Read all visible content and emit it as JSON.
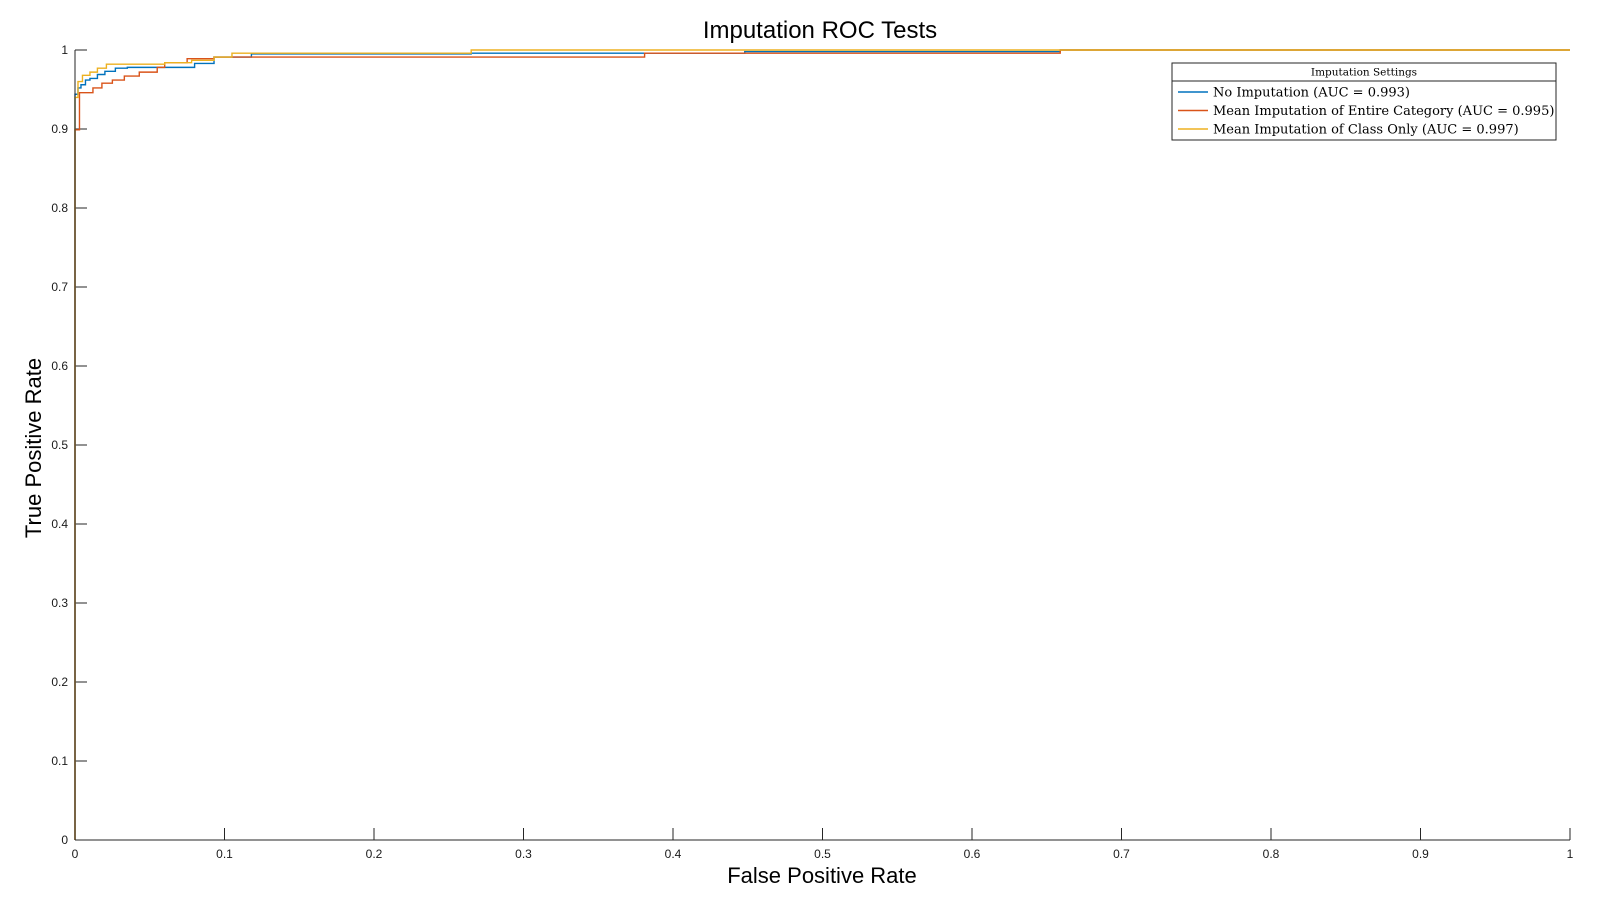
{
  "chart_data": {
    "type": "line",
    "title": "Imputation ROC Tests",
    "xlabel": "False Positive Rate",
    "ylabel": "True Positive Rate",
    "xlim": [
      0,
      1
    ],
    "ylim": [
      0,
      1
    ],
    "xticks": [
      "0",
      "0.1",
      "0.2",
      "0.3",
      "0.4",
      "0.5",
      "0.6",
      "0.7",
      "0.8",
      "0.9",
      "1"
    ],
    "yticks": [
      "0",
      "0.1",
      "0.2",
      "0.3",
      "0.4",
      "0.5",
      "0.6",
      "0.7",
      "0.8",
      "0.9",
      "1"
    ],
    "grid": false,
    "legend": {
      "title": "Imputation Settings",
      "position": "top-right"
    },
    "series": [
      {
        "name": "No Imputation (AUC = 0.993)",
        "color": "#0072BD",
        "x": [
          0,
          0,
          0.002,
          0.002,
          0.004,
          0.004,
          0.007,
          0.007,
          0.01,
          0.01,
          0.015,
          0.015,
          0.02,
          0.02,
          0.027,
          0.027,
          0.035,
          0.035,
          0.055,
          0.055,
          0.08,
          0.08,
          0.093,
          0.093,
          0.118,
          0.118,
          0.265,
          0.265,
          0.381,
          0.381,
          0.448,
          0.448,
          0.659,
          0.659,
          1.0
        ],
        "y": [
          0,
          0.944,
          0.944,
          0.952,
          0.952,
          0.956,
          0.956,
          0.962,
          0.962,
          0.964,
          0.964,
          0.969,
          0.969,
          0.973,
          0.973,
          0.977,
          0.977,
          0.978,
          0.978,
          0.978,
          0.978,
          0.983,
          0.983,
          0.991,
          0.991,
          0.995,
          0.995,
          0.996,
          0.996,
          0.996,
          0.996,
          0.998,
          0.998,
          1.0,
          1.0
        ]
      },
      {
        "name": "Mean Imputation of Entire Category (AUC = 0.995)",
        "color": "#D95319",
        "x": [
          0,
          0,
          0.003,
          0.003,
          0.012,
          0.012,
          0.018,
          0.018,
          0.025,
          0.025,
          0.033,
          0.033,
          0.043,
          0.043,
          0.055,
          0.055,
          0.06,
          0.06,
          0.075,
          0.075,
          0.093,
          0.093,
          0.381,
          0.381,
          0.659,
          0.659,
          1.0
        ],
        "y": [
          0,
          0.899,
          0.899,
          0.946,
          0.946,
          0.952,
          0.952,
          0.958,
          0.958,
          0.962,
          0.962,
          0.967,
          0.967,
          0.972,
          0.972,
          0.978,
          0.978,
          0.984,
          0.984,
          0.989,
          0.989,
          0.991,
          0.991,
          0.996,
          0.996,
          1.0,
          1.0
        ]
      },
      {
        "name": "Mean Imputation of Class Only (AUC = 0.997)",
        "color": "#EDB120",
        "x": [
          0,
          0,
          0.002,
          0.002,
          0.005,
          0.005,
          0.01,
          0.01,
          0.015,
          0.015,
          0.021,
          0.021,
          0.06,
          0.06,
          0.078,
          0.078,
          0.093,
          0.093,
          0.105,
          0.105,
          0.265,
          0.265,
          1.0
        ],
        "y": [
          0,
          0.94,
          0.94,
          0.96,
          0.96,
          0.968,
          0.968,
          0.972,
          0.972,
          0.977,
          0.977,
          0.982,
          0.982,
          0.984,
          0.984,
          0.987,
          0.987,
          0.991,
          0.991,
          0.996,
          0.996,
          1.0,
          1.0
        ]
      }
    ]
  }
}
